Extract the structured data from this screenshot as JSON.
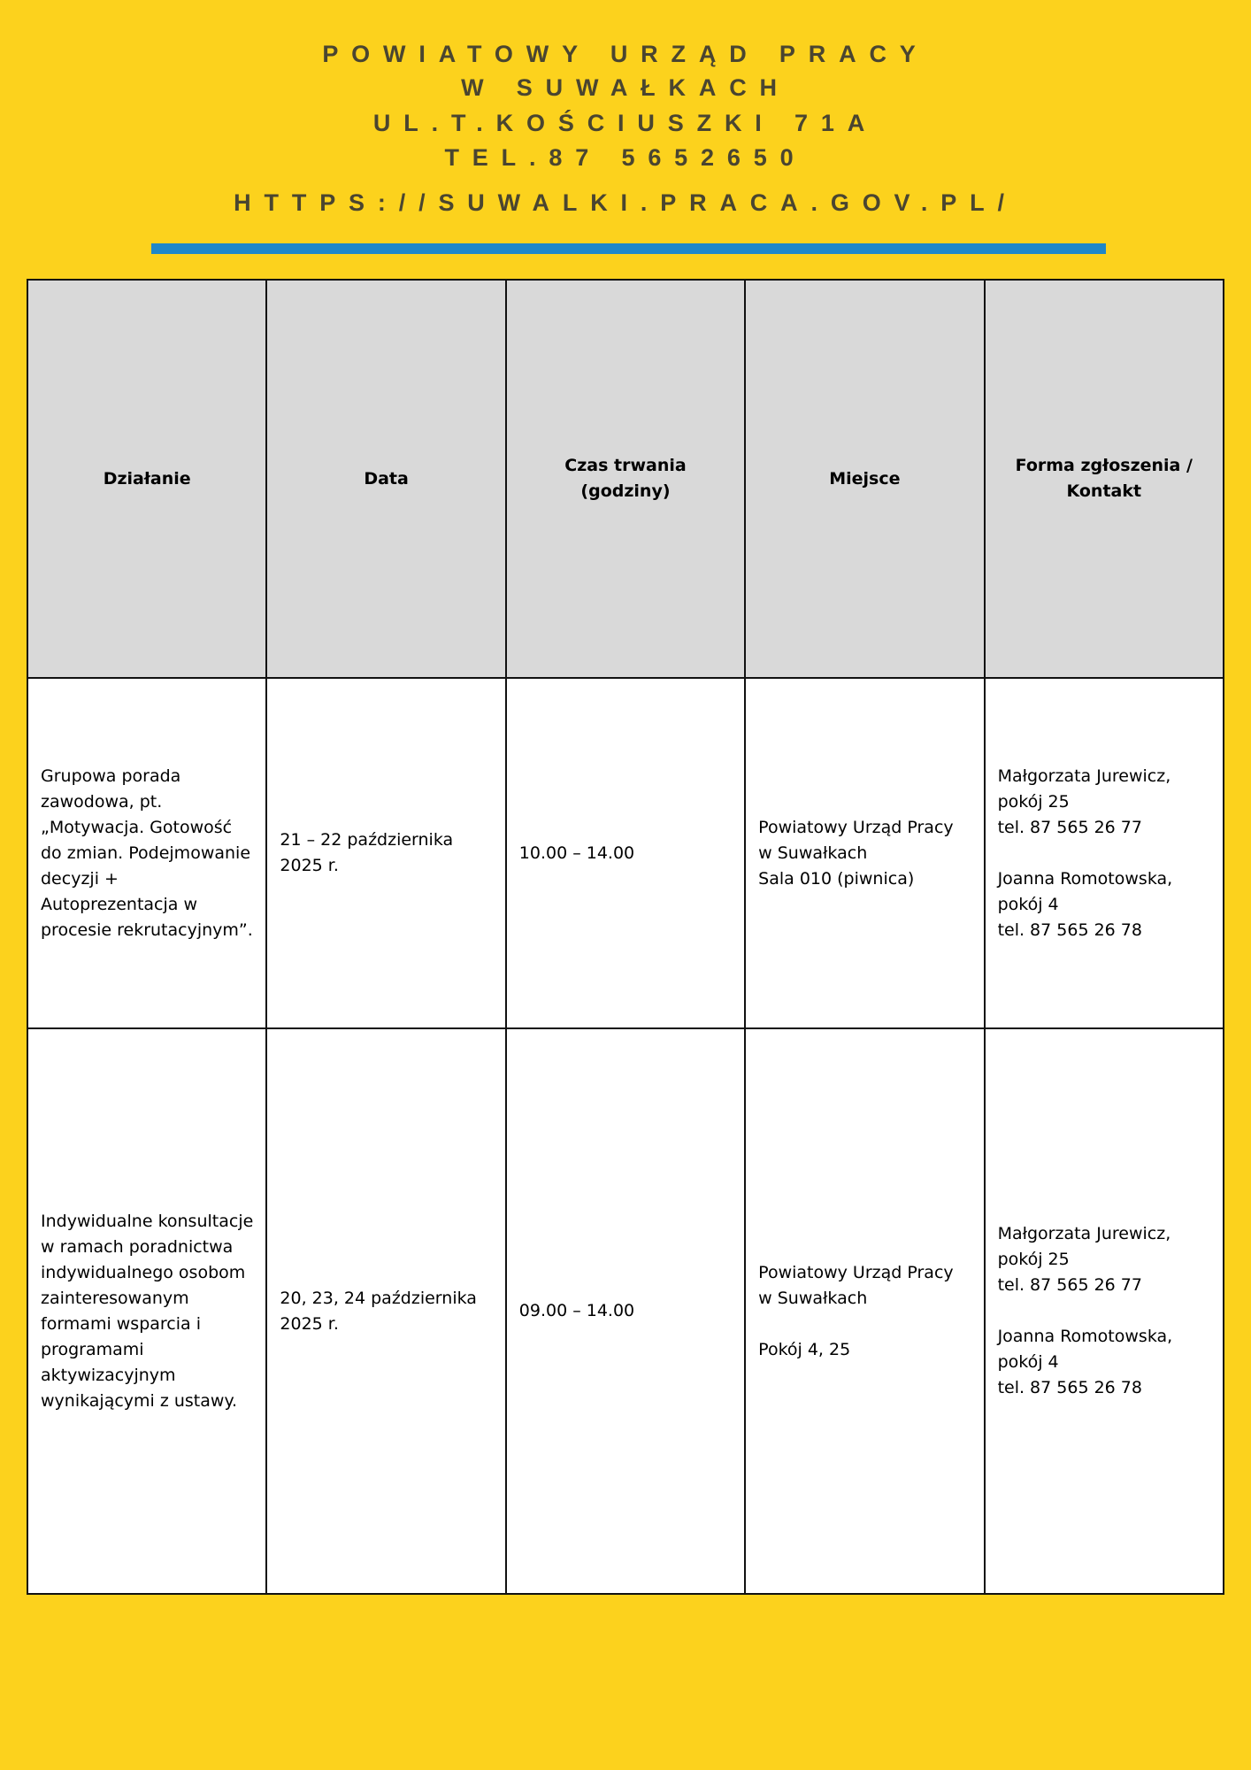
{
  "header": {
    "lines": [
      "POWIATOWY URZĄD PRACY",
      "W SUWAŁKACH",
      "UL.T.KOŚCIUSZKI 71A",
      "TEL.87 5652650"
    ],
    "url": "HTTPS://SUWALKI.PRACA.GOV.PL/"
  },
  "colors": {
    "background": "#fcd21d",
    "divider": "#1f87c8",
    "header_fill": "#d9d9d9",
    "title_text": "#4a4530"
  },
  "table": {
    "columns": [
      "Działanie",
      "Data",
      "Czas trwania (godziny)",
      "Miejsce",
      "Forma zgłoszenia / Kontakt"
    ],
    "rows": [
      [
        "Grupowa porada zawodowa, pt. „Motywacja. Gotowość do zmian. Podejmowanie decyzji + Autoprezentacja w procesie rekrutacyjnym”.",
        "21 – 22 października 2025 r.",
        "10.00 – 14.00",
        "Powiatowy Urząd Pracy w Suwałkach\n Sala 010 (piwnica)",
        "Małgorzata Jurewicz, pokój 25\ntel. 87 565 26 77\n\nJoanna Romotowska, pokój 4\ntel. 87 565 26 78"
      ],
      [
        "Indywidualne konsultacje w ramach poradnictwa indywidualnego osobom zainteresowanym formami wsparcia i programami aktywizacyjnym wynikającymi z ustawy.",
        "20, 23, 24 października 2025 r.",
        "09.00 – 14.00",
        "Powiatowy Urząd Pracy w Suwałkach\n\nPokój 4, 25",
        "Małgorzata Jurewicz, pokój 25\ntel. 87 565 26 77\n\nJoanna Romotowska, pokój 4\ntel. 87 565 26 78"
      ]
    ]
  }
}
